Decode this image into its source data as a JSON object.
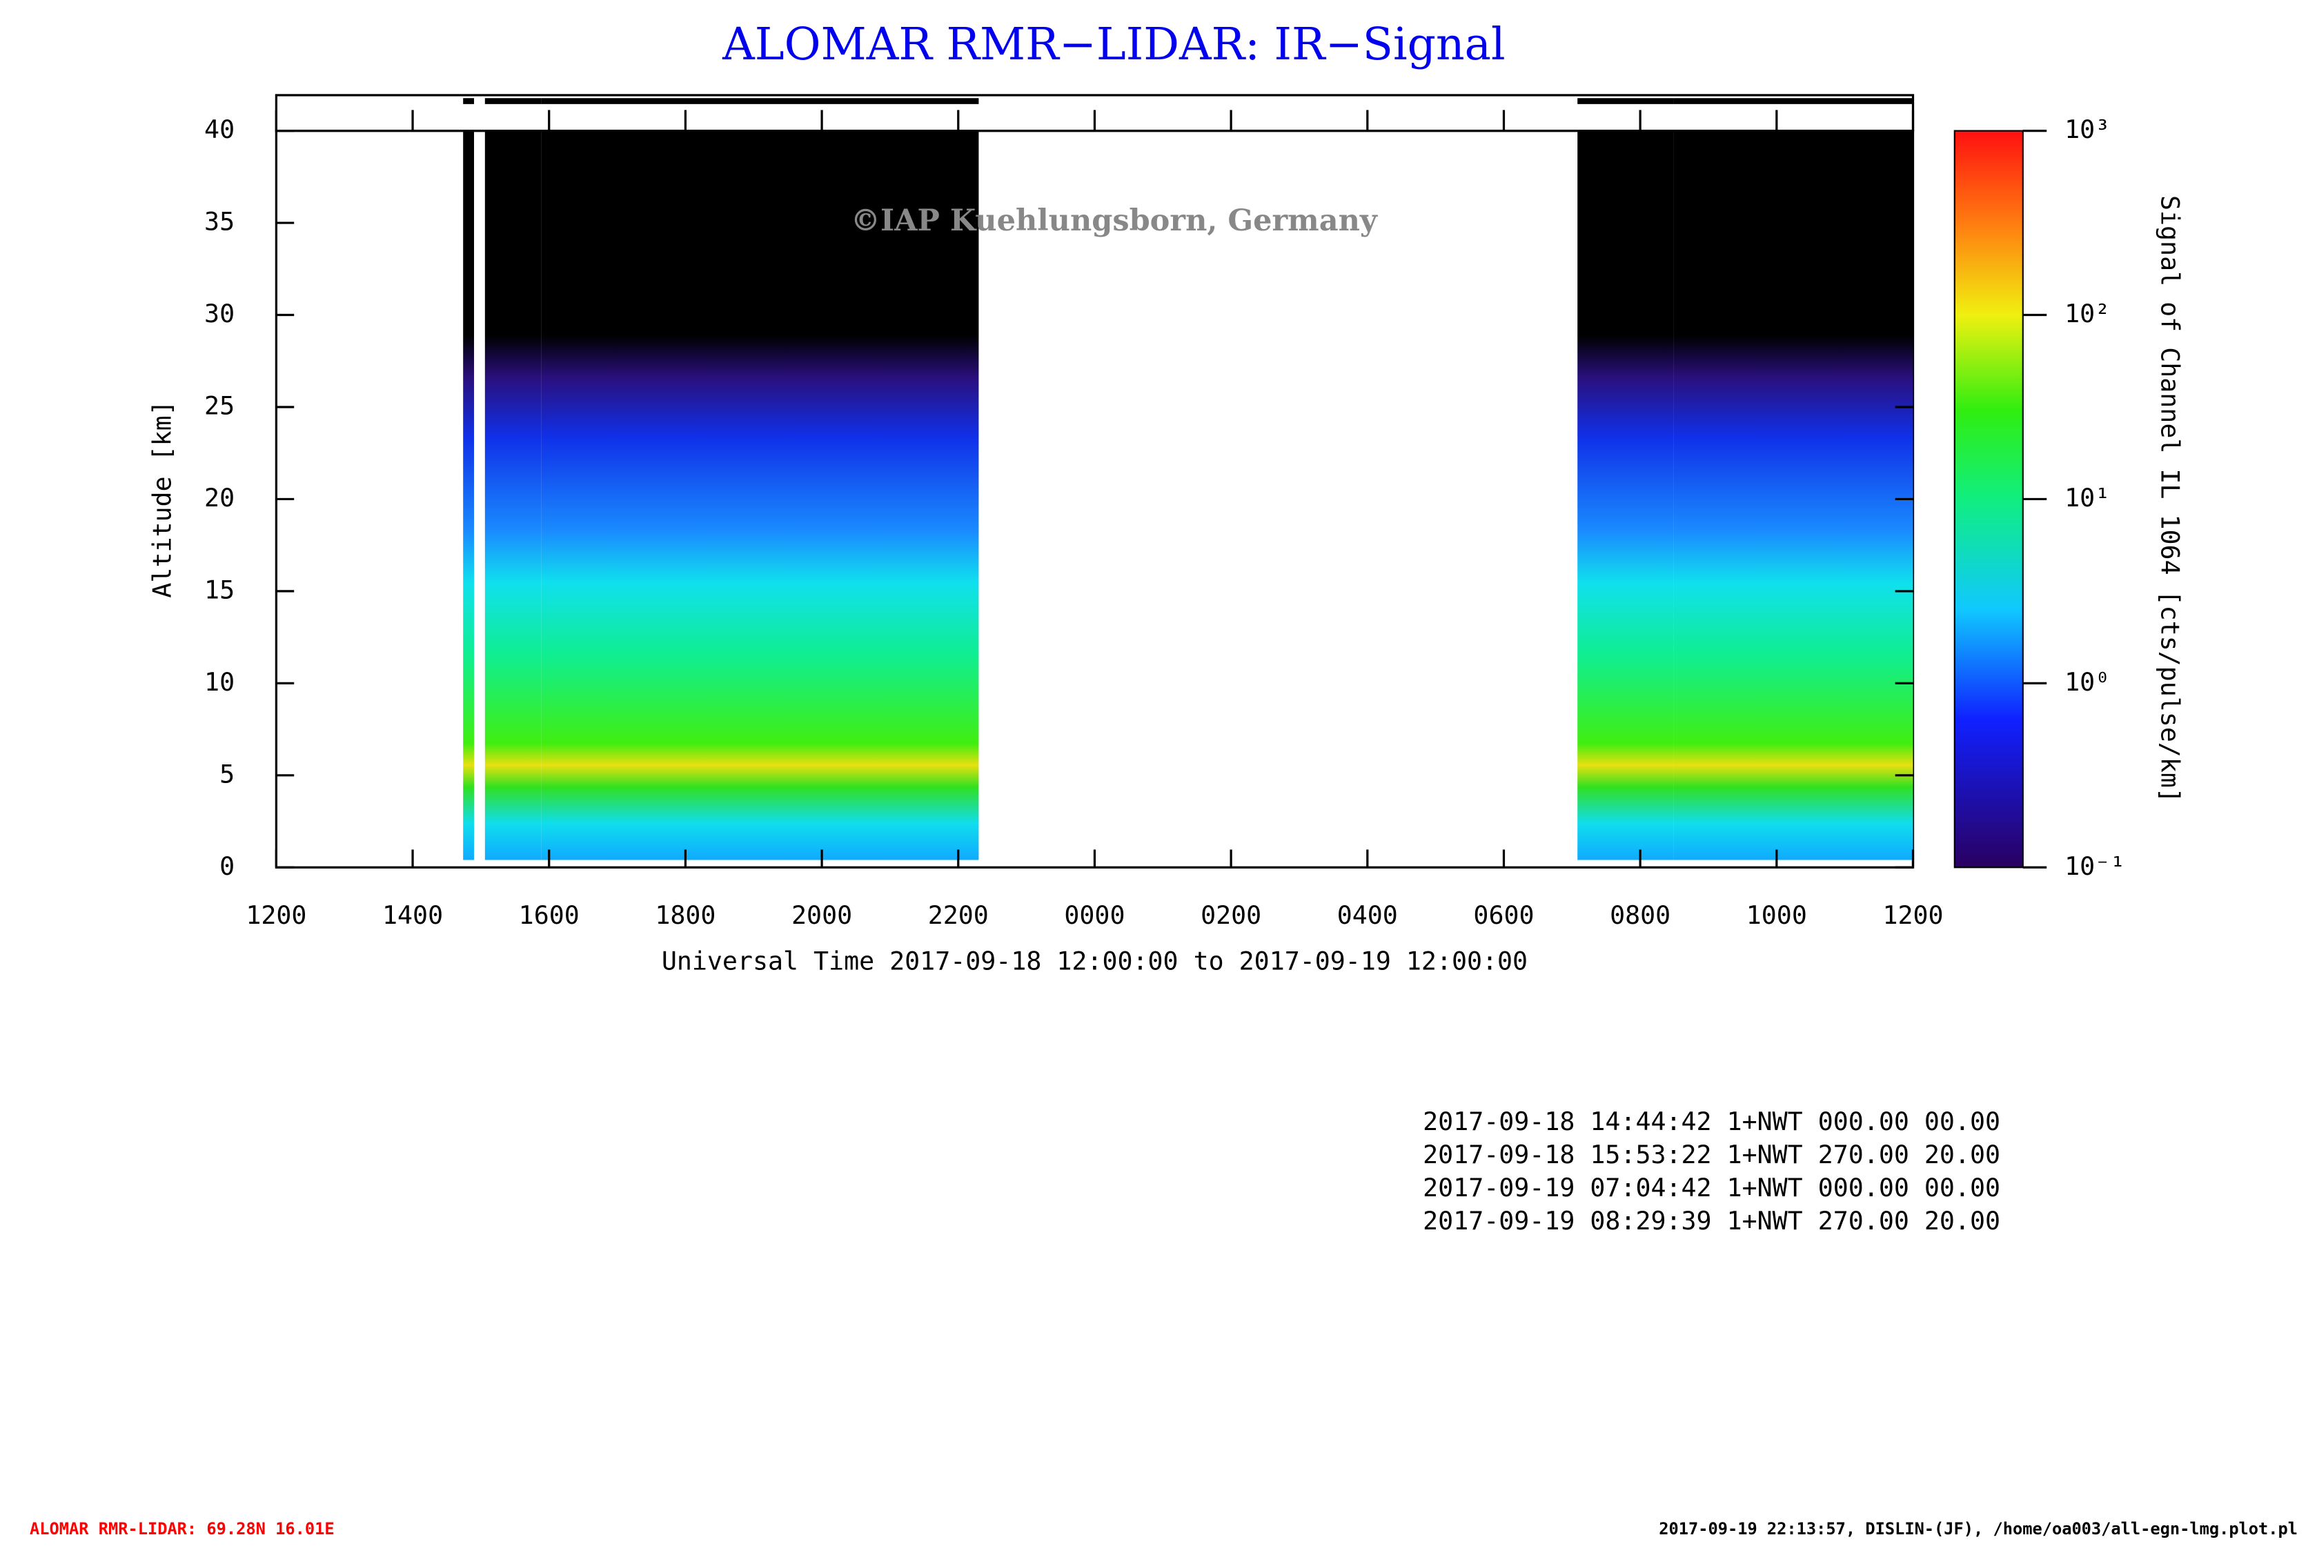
{
  "chart_data": {
    "type": "heatmap",
    "title": "ALOMAR RMR−LIDAR: IR−Signal",
    "watermark": "©IAP Kuehlungsborn, Germany",
    "xlabel": "Universal Time 2017-09-18 12:00:00 to 2017-09-19 12:00:00",
    "ylabel": "Altitude [km]",
    "colorbar_label": "Signal of Channel IL 1064 [cts/pulse/km]",
    "xlim": [
      12,
      36
    ],
    "xticks": [
      {
        "value": 12,
        "label": "1200"
      },
      {
        "value": 14,
        "label": "1400"
      },
      {
        "value": 16,
        "label": "1600"
      },
      {
        "value": 18,
        "label": "1800"
      },
      {
        "value": 20,
        "label": "2000"
      },
      {
        "value": 22,
        "label": "2200"
      },
      {
        "value": 24,
        "label": "0000"
      },
      {
        "value": 26,
        "label": "0200"
      },
      {
        "value": 28,
        "label": "0400"
      },
      {
        "value": 30,
        "label": "0600"
      },
      {
        "value": 32,
        "label": "0800"
      },
      {
        "value": 34,
        "label": "1000"
      },
      {
        "value": 36,
        "label": "1200"
      }
    ],
    "ylim": [
      0,
      40
    ],
    "yticks": [
      0,
      5,
      10,
      15,
      20,
      25,
      30,
      35,
      40
    ],
    "clim": [
      0.1,
      1000
    ],
    "clog": true,
    "cticks": [
      {
        "value": 0.1,
        "label": "10⁻¹"
      },
      {
        "value": 1,
        "label": "10⁰"
      },
      {
        "value": 10,
        "label": "10¹"
      },
      {
        "value": 100,
        "label": "10²"
      },
      {
        "value": 1000,
        "label": "10³"
      }
    ],
    "segments": [
      {
        "start": 14.74,
        "end": 14.9
      },
      {
        "start": 15.06,
        "end": 15.89
      },
      {
        "start": 15.89,
        "end": 22.3
      },
      {
        "start": 31.08,
        "end": 32.49
      },
      {
        "start": 32.49,
        "end": 36
      }
    ],
    "annotations": [
      "2017-09-18 14:44:42 1+NWT 000.00 00.00",
      "2017-09-18 15:53:22 1+NWT 270.00 20.00",
      "2017-09-19 07:04:42 1+NWT 000.00 00.00",
      "2017-09-19 08:29:39 1+NWT 270.00 20.00"
    ],
    "footer_left": "ALOMAR RMR-LIDAR: 69.28N 16.01E",
    "footer_right": "2017-09-19 22:13:57, DISLIN-(JF), /home/oa003/all-egn-lmg.plot.pl"
  }
}
